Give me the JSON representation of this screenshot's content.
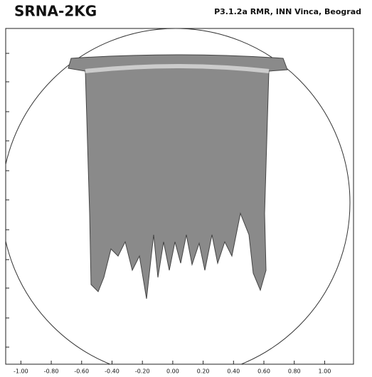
{
  "chart_data": {
    "type": "contour",
    "title": "SRNA-2KG",
    "subtitle": "P3.1.2a  RMR, INN Vinca, Beograd",
    "xlim": [
      -1.1,
      1.19
    ],
    "xticks": [
      {
        "value": -1,
        "label": "-1.00"
      },
      {
        "value": -0.8,
        "label": "-0.80"
      },
      {
        "value": -0.6,
        "label": "-0.60"
      },
      {
        "value": -0.4,
        "label": "-0.40"
      },
      {
        "value": -0.2,
        "label": "-0.20"
      },
      {
        "value": 0,
        "label": "0.00"
      },
      {
        "value": 0.2,
        "label": "0.20"
      },
      {
        "value": 0.4,
        "label": "0.40"
      },
      {
        "value": 0.6,
        "label": "0.60"
      },
      {
        "value": 0.8,
        "label": "0.80"
      },
      {
        "value": 1,
        "label": "1.00"
      }
    ]
  }
}
